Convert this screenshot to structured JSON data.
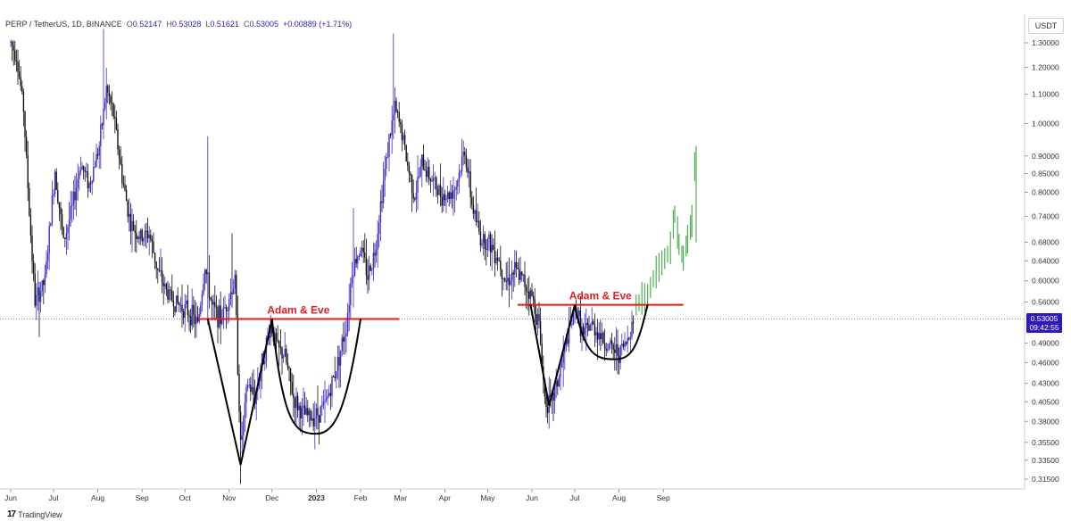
{
  "header": {
    "symbol": "PERP / TetherUS, 1D, BINANCE",
    "open_label": "O",
    "open": "0.52147",
    "high_label": "H",
    "high": "0.53028",
    "low_label": "L",
    "low": "0.51621",
    "close_label": "C",
    "close": "0.53005",
    "change": "+0.00889 (+1.71%)"
  },
  "currency": "USDT",
  "brand": {
    "icon": "tradingview-logo-icon",
    "name": "TradingView"
  },
  "last_price": {
    "value": "0.53005",
    "countdown": "09:42:55"
  },
  "colors": {
    "candle": "#3d2fc9",
    "wick": "#3d2fc9",
    "bear": "#111111",
    "projection": "#4caf50",
    "resistance": "#e31b1b",
    "pattern": "#000000",
    "last_price_line": "#5b4ed6"
  },
  "chart_data": {
    "type": "candlestick",
    "y_scale": "log",
    "ylim": [
      0.3,
      1.4
    ],
    "y_ticks": [
      1.3,
      1.2,
      1.1,
      1.0,
      0.9,
      0.85,
      0.8,
      0.74,
      0.68,
      0.64,
      0.6,
      0.56,
      0.49,
      0.46,
      0.43,
      0.405,
      0.38,
      0.355,
      0.335,
      0.315
    ],
    "y_tick_labels": [
      "1.30000",
      "1.20000",
      "1.10000",
      "1.00000",
      "0.90000",
      "0.85000",
      "0.80000",
      "0.74000",
      "0.68000",
      "0.64000",
      "0.60000",
      "0.56000",
      "0.49000",
      "0.46000",
      "0.43000",
      "0.40500",
      "0.38000",
      "0.35500",
      "0.33500",
      "0.31500"
    ],
    "x_range": [
      "2022-06-01",
      "2023-09-30"
    ],
    "x_ticks": [
      {
        "date": "2022-06-01",
        "label": "Jun"
      },
      {
        "date": "2022-07-01",
        "label": "Jul"
      },
      {
        "date": "2022-08-01",
        "label": "Aug"
      },
      {
        "date": "2022-09-01",
        "label": "Sep"
      },
      {
        "date": "2022-10-01",
        "label": "Oct"
      },
      {
        "date": "2022-11-01",
        "label": "Nov"
      },
      {
        "date": "2022-12-01",
        "label": "Dec"
      },
      {
        "date": "2023-01-01",
        "label": "2023"
      },
      {
        "date": "2023-02-01",
        "label": "Feb"
      },
      {
        "date": "2023-03-01",
        "label": "Mar"
      },
      {
        "date": "2023-04-01",
        "label": "Apr"
      },
      {
        "date": "2023-05-01",
        "label": "May"
      },
      {
        "date": "2023-06-01",
        "label": "Jun"
      },
      {
        "date": "2023-07-01",
        "label": "Jul"
      },
      {
        "date": "2023-08-01",
        "label": "Aug"
      },
      {
        "date": "2023-09-01",
        "label": "Sep"
      }
    ],
    "price_path": [
      [
        "2022-06-01",
        1.3
      ],
      [
        "2022-06-05",
        1.25
      ],
      [
        "2022-06-10",
        1.05
      ],
      [
        "2022-06-14",
        0.75
      ],
      [
        "2022-06-18",
        0.56
      ],
      [
        "2022-06-25",
        0.6
      ],
      [
        "2022-07-02",
        0.86
      ],
      [
        "2022-07-08",
        0.68
      ],
      [
        "2022-07-14",
        0.76
      ],
      [
        "2022-07-20",
        0.88
      ],
      [
        "2022-07-26",
        0.82
      ],
      [
        "2022-08-02",
        0.93
      ],
      [
        "2022-08-07",
        1.12
      ],
      [
        "2022-08-12",
        1.03
      ],
      [
        "2022-08-18",
        0.84
      ],
      [
        "2022-08-24",
        0.72
      ],
      [
        "2022-08-31",
        0.69
      ],
      [
        "2022-09-06",
        0.7
      ],
      [
        "2022-09-12",
        0.62
      ],
      [
        "2022-09-18",
        0.58
      ],
      [
        "2022-09-24",
        0.56
      ],
      [
        "2022-09-30",
        0.55
      ],
      [
        "2022-10-05",
        0.54
      ],
      [
        "2022-10-10",
        0.52
      ],
      [
        "2022-10-15",
        0.63
      ],
      [
        "2022-10-20",
        0.55
      ],
      [
        "2022-10-26",
        0.53
      ],
      [
        "2022-11-01",
        0.57
      ],
      [
        "2022-11-05",
        0.6
      ],
      [
        "2022-11-09",
        0.35
      ],
      [
        "2022-11-14",
        0.43
      ],
      [
        "2022-11-19",
        0.41
      ],
      [
        "2022-11-24",
        0.46
      ],
      [
        "2022-11-30",
        0.52
      ],
      [
        "2022-12-05",
        0.48
      ],
      [
        "2022-12-10",
        0.47
      ],
      [
        "2022-12-16",
        0.41
      ],
      [
        "2022-12-22",
        0.39
      ],
      [
        "2022-12-28",
        0.385
      ],
      [
        "2023-01-02",
        0.39
      ],
      [
        "2023-01-07",
        0.4
      ],
      [
        "2023-01-12",
        0.43
      ],
      [
        "2023-01-17",
        0.47
      ],
      [
        "2023-01-22",
        0.52
      ],
      [
        "2023-01-26",
        0.62
      ],
      [
        "2023-02-01",
        0.67
      ],
      [
        "2023-02-06",
        0.61
      ],
      [
        "2023-02-11",
        0.66
      ],
      [
        "2023-02-16",
        0.8
      ],
      [
        "2023-02-21",
        0.95
      ],
      [
        "2023-02-25",
        1.05
      ],
      [
        "2023-03-02",
        0.97
      ],
      [
        "2023-03-06",
        0.87
      ],
      [
        "2023-03-11",
        0.79
      ],
      [
        "2023-03-16",
        0.88
      ],
      [
        "2023-03-22",
        0.84
      ],
      [
        "2023-03-28",
        0.8
      ],
      [
        "2023-04-03",
        0.79
      ],
      [
        "2023-04-09",
        0.82
      ],
      [
        "2023-04-15",
        0.92
      ],
      [
        "2023-04-20",
        0.77
      ],
      [
        "2023-04-26",
        0.69
      ],
      [
        "2023-05-02",
        0.68
      ],
      [
        "2023-05-08",
        0.65
      ],
      [
        "2023-05-14",
        0.6
      ],
      [
        "2023-05-20",
        0.62
      ],
      [
        "2023-05-26",
        0.6
      ],
      [
        "2023-06-01",
        0.57
      ],
      [
        "2023-06-06",
        0.52
      ],
      [
        "2023-06-10",
        0.41
      ],
      [
        "2023-06-14",
        0.4
      ],
      [
        "2023-06-20",
        0.44
      ],
      [
        "2023-06-26",
        0.5
      ],
      [
        "2023-07-02",
        0.55
      ],
      [
        "2023-07-07",
        0.5
      ],
      [
        "2023-07-12",
        0.52
      ],
      [
        "2023-07-17",
        0.51
      ],
      [
        "2023-07-22",
        0.49
      ],
      [
        "2023-07-27",
        0.48
      ],
      [
        "2023-08-01",
        0.475
      ],
      [
        "2023-08-06",
        0.49
      ],
      [
        "2023-08-11",
        0.53
      ]
    ],
    "spikes": [
      {
        "date": "2022-06-21",
        "high": 0.5,
        "low": 0.5
      },
      {
        "date": "2022-08-05",
        "high": 1.36,
        "low": 0.95
      },
      {
        "date": "2022-10-17",
        "high": 0.96,
        "low": 0.52
      },
      {
        "date": "2022-11-03",
        "high": 0.7,
        "low": 0.55
      },
      {
        "date": "2022-11-09",
        "high": 0.4,
        "low": 0.31
      },
      {
        "date": "2023-02-24",
        "high": 1.34,
        "low": 0.95
      },
      {
        "date": "2023-01-27",
        "high": 0.76,
        "low": 0.55
      },
      {
        "date": "2023-06-13",
        "high": 0.44,
        "low": 0.385
      }
    ],
    "projection": [
      [
        "2023-08-13",
        0.55
      ],
      [
        "2023-08-17",
        0.56
      ],
      [
        "2023-08-21",
        0.565
      ],
      [
        "2023-08-25",
        0.6
      ],
      [
        "2023-08-29",
        0.62
      ],
      [
        "2023-09-02",
        0.64
      ],
      [
        "2023-09-06",
        0.66
      ],
      [
        "2023-09-09",
        0.74
      ],
      [
        "2023-09-12",
        0.67
      ],
      [
        "2023-09-15",
        0.64
      ],
      [
        "2023-09-18",
        0.68
      ],
      [
        "2023-09-21",
        0.72
      ],
      [
        "2023-09-24",
        0.93
      ]
    ],
    "last_price": 0.53005,
    "annotations": [
      {
        "label": "Adam & Eve",
        "resistance": {
          "from": "2022-10-10",
          "to": "2023-02-28",
          "price": 0.53
        },
        "adam": [
          [
            "2022-10-17",
            0.53
          ],
          [
            "2022-11-09",
            0.33
          ],
          [
            "2022-12-01",
            0.53
          ]
        ],
        "eve_curve": {
          "from": "2022-12-01",
          "bottom": "2023-01-01",
          "to": "2023-02-01",
          "top_price": 0.53,
          "bottom_price": 0.365
        }
      },
      {
        "label": "Adam & Eve",
        "resistance": {
          "from": "2023-05-22",
          "to": "2023-09-15",
          "price": 0.555
        },
        "adam": [
          [
            "2023-05-31",
            0.555
          ],
          [
            "2023-06-13",
            0.4
          ],
          [
            "2023-07-01",
            0.555
          ]
        ],
        "eve_curve": {
          "from": "2023-07-01",
          "bottom": "2023-07-29",
          "to": "2023-08-21",
          "top_price": 0.555,
          "bottom_price": 0.465
        }
      }
    ]
  }
}
